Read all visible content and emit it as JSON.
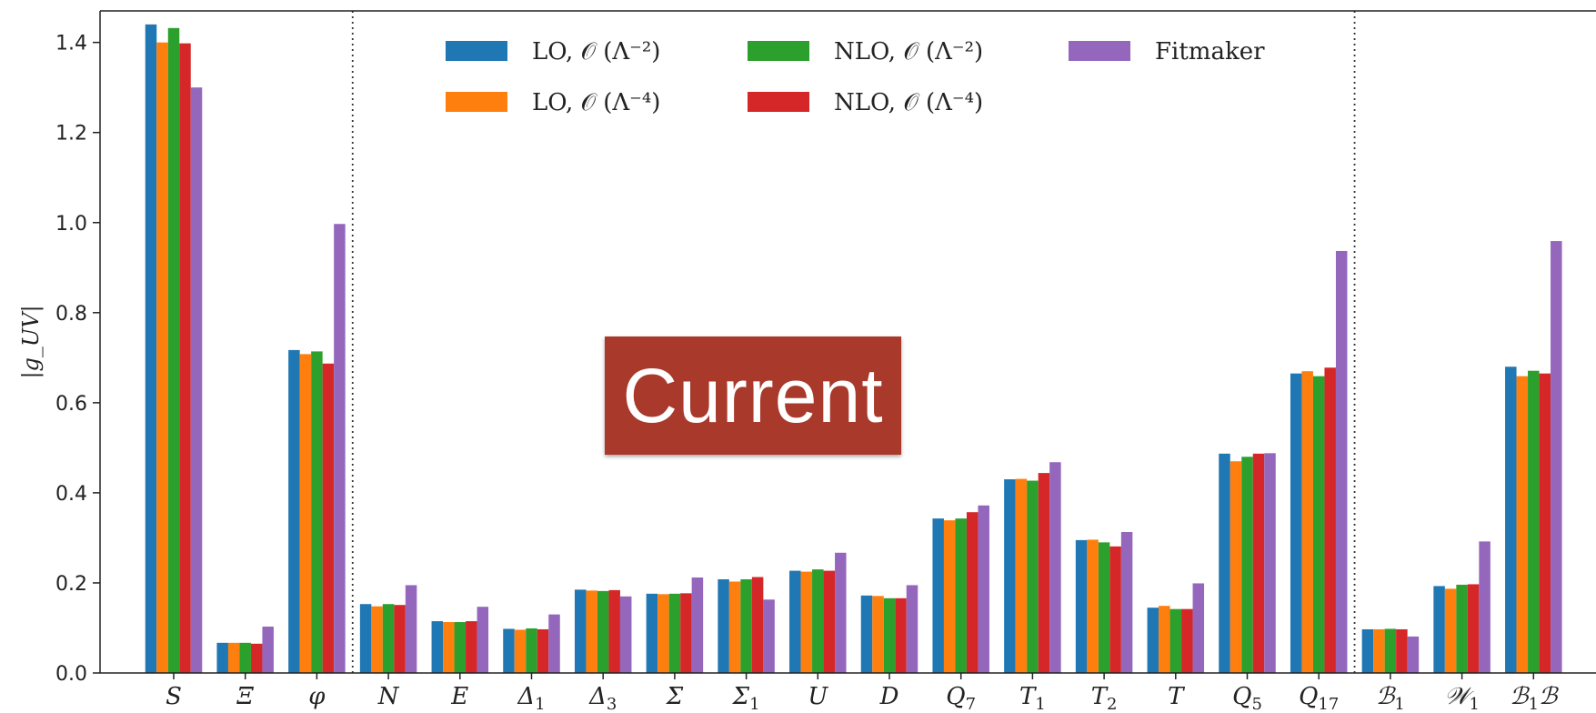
{
  "chart_data": {
    "type": "bar",
    "ylabel": "|g_UV|",
    "ylim": [
      0.0,
      1.47
    ],
    "yticks": [
      "0.0",
      "0.2",
      "0.4",
      "0.6",
      "0.8",
      "1.0",
      "1.2",
      "1.4"
    ],
    "categories": [
      "S",
      "Ξ",
      "φ",
      "N",
      "E",
      "Δ1",
      "Δ3",
      "Σ",
      "Σ1",
      "U",
      "D",
      "Q7",
      "T1",
      "T2",
      "T",
      "Q5",
      "Q17",
      "B1",
      "W1",
      "B1B"
    ],
    "category_labels": [
      {
        "main": "S",
        "sub": ""
      },
      {
        "main": "Ξ",
        "sub": ""
      },
      {
        "main": "φ",
        "sub": ""
      },
      {
        "main": "N",
        "sub": ""
      },
      {
        "main": "E",
        "sub": ""
      },
      {
        "main": "Δ",
        "sub": "1"
      },
      {
        "main": "Δ",
        "sub": "3"
      },
      {
        "main": "Σ",
        "sub": ""
      },
      {
        "main": "Σ",
        "sub": "1"
      },
      {
        "main": "U",
        "sub": ""
      },
      {
        "main": "D",
        "sub": ""
      },
      {
        "main": "Q",
        "sub": "7"
      },
      {
        "main": "T",
        "sub": "1"
      },
      {
        "main": "T",
        "sub": "2"
      },
      {
        "main": "T",
        "sub": ""
      },
      {
        "main": "Q",
        "sub": "5"
      },
      {
        "main": "Q",
        "sub": "17"
      },
      {
        "main": "ℬ",
        "sub": "1"
      },
      {
        "main": "𝒲",
        "sub": "1"
      },
      {
        "main": "ℬ",
        "sub": "1",
        "suffix": "ℬ"
      }
    ],
    "group_separators_after": [
      "φ",
      "Q17"
    ],
    "grid": false,
    "legend_position": "top",
    "series": [
      {
        "name": "LO, 𝒪 (Λ⁻²)",
        "color": "#1f77b4",
        "values": [
          1.44,
          0.067,
          0.717,
          0.153,
          0.115,
          0.098,
          0.185,
          0.176,
          0.208,
          0.227,
          0.172,
          0.343,
          0.43,
          0.295,
          0.145,
          0.487,
          0.665,
          0.097,
          0.193,
          0.68
        ]
      },
      {
        "name": "LO, 𝒪 (Λ⁻⁴)",
        "color": "#ff7f0e",
        "values": [
          1.4,
          0.067,
          0.708,
          0.148,
          0.113,
          0.096,
          0.183,
          0.175,
          0.203,
          0.225,
          0.171,
          0.339,
          0.431,
          0.296,
          0.149,
          0.47,
          0.67,
          0.097,
          0.187,
          0.659
        ]
      },
      {
        "name": "NLO, 𝒪 (Λ⁻²)",
        "color": "#2ca02c",
        "values": [
          1.432,
          0.067,
          0.714,
          0.153,
          0.113,
          0.099,
          0.182,
          0.176,
          0.208,
          0.23,
          0.166,
          0.343,
          0.427,
          0.29,
          0.142,
          0.48,
          0.659,
          0.098,
          0.196,
          0.671
        ]
      },
      {
        "name": "NLO, 𝒪 (Λ⁻⁴)",
        "color": "#d62728",
        "values": [
          1.398,
          0.065,
          0.687,
          0.151,
          0.115,
          0.097,
          0.184,
          0.177,
          0.213,
          0.227,
          0.166,
          0.357,
          0.444,
          0.281,
          0.142,
          0.487,
          0.678,
          0.097,
          0.197,
          0.665
        ]
      },
      {
        "name": "Fitmaker",
        "color": "#9467bd",
        "values": [
          1.3,
          0.103,
          0.997,
          0.195,
          0.147,
          0.13,
          0.17,
          0.212,
          0.163,
          0.267,
          0.195,
          0.372,
          0.468,
          0.313,
          0.199,
          0.488,
          0.937,
          0.081,
          0.292,
          0.959
        ]
      }
    ]
  },
  "overlay": {
    "label": "Current"
  }
}
